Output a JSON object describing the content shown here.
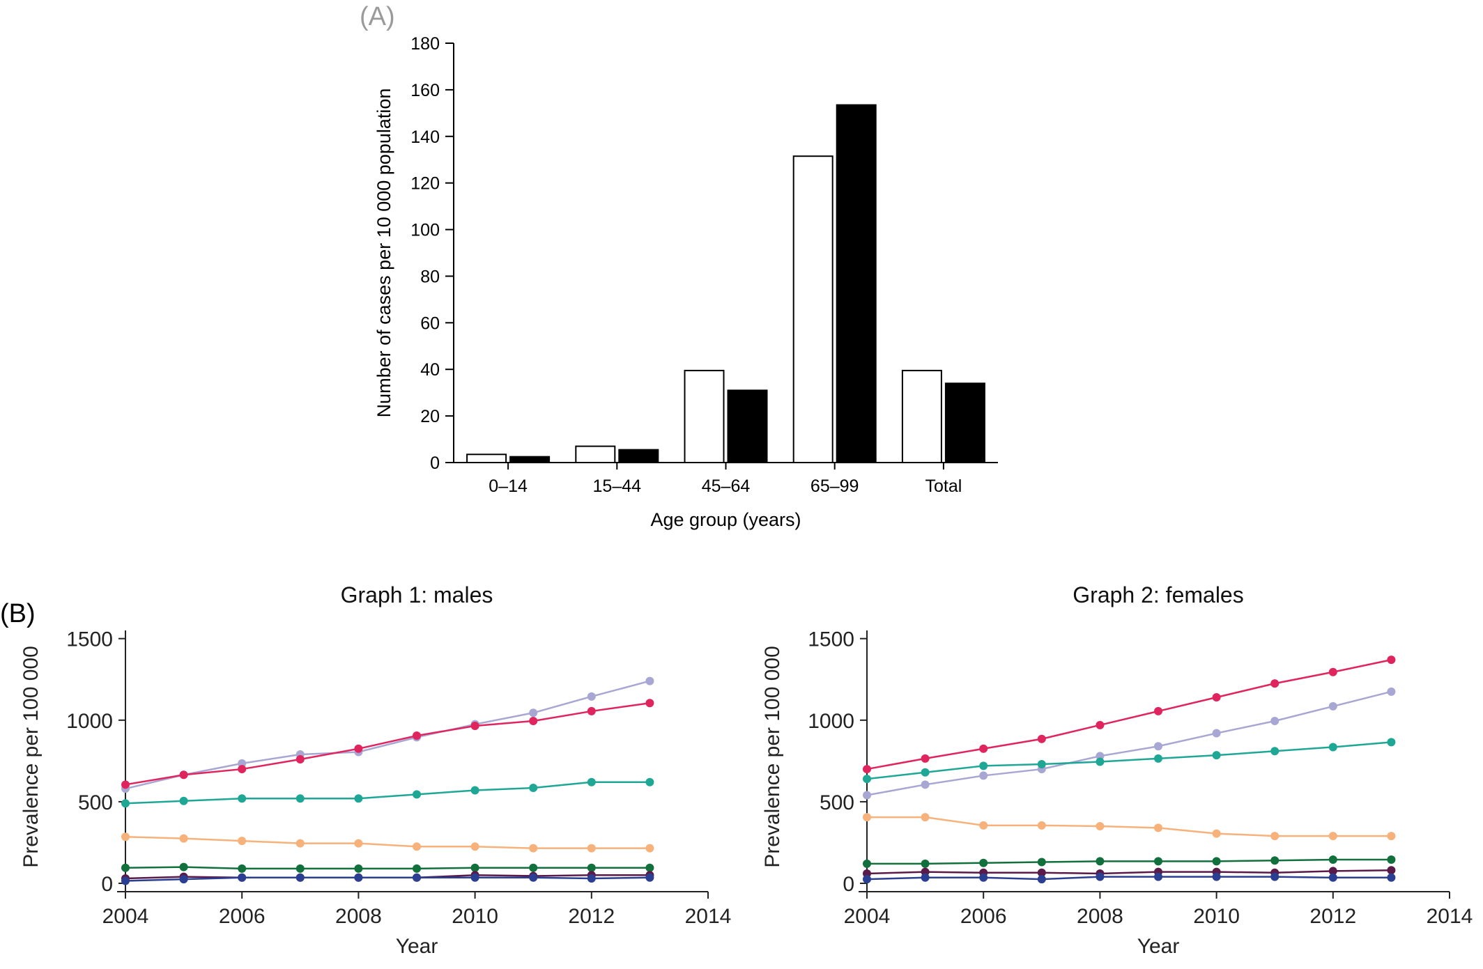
{
  "chart_data": [
    {
      "panel_label": "(A)",
      "type": "bar",
      "xlabel": "Age group (years)",
      "ylabel": "Number of cases per 10 000 population",
      "categories": [
        "0–14",
        "15–44",
        "45–64",
        "65–99",
        "Total"
      ],
      "ylim": [
        0,
        180
      ],
      "yticks": [
        0,
        20,
        40,
        60,
        80,
        100,
        120,
        140,
        160,
        180
      ],
      "series": [
        {
          "fill": "#ffffff",
          "values": [
            3.5,
            7,
            39.5,
            131.5,
            39.5
          ]
        },
        {
          "fill": "#000000",
          "values": [
            2.5,
            5.5,
            31,
            153.5,
            34
          ]
        }
      ]
    },
    {
      "panel_label": "(B)",
      "type": "line",
      "title": "Graph 1: males",
      "xlabel": "Year",
      "ylabel": "Prevalence per 100 000",
      "x": [
        2004,
        2005,
        2006,
        2007,
        2008,
        2009,
        2010,
        2011,
        2012,
        2013
      ],
      "xlim": [
        2004,
        2014
      ],
      "xticks": [
        2004,
        2006,
        2008,
        2010,
        2012,
        2014
      ],
      "ylim": [
        0,
        1550
      ],
      "yticks": [
        0,
        500,
        1000,
        1500
      ],
      "series": [
        {
          "color": "#a8a6d2",
          "values": [
            580,
            665,
            735,
            790,
            805,
            895,
            975,
            1045,
            1145,
            1240
          ]
        },
        {
          "color": "#e0245e",
          "values": [
            605,
            665,
            700,
            760,
            825,
            905,
            965,
            995,
            1055,
            1105
          ]
        },
        {
          "color": "#1fa796",
          "values": [
            490,
            505,
            520,
            520,
            520,
            545,
            570,
            585,
            620,
            620
          ]
        },
        {
          "color": "#f7b27c",
          "values": [
            285,
            275,
            260,
            245,
            245,
            225,
            225,
            215,
            215,
            215
          ]
        },
        {
          "color": "#12703d",
          "values": [
            95,
            100,
            90,
            90,
            90,
            90,
            95,
            95,
            95,
            95
          ]
        },
        {
          "color": "#5a1a4a",
          "values": [
            30,
            40,
            35,
            35,
            35,
            35,
            50,
            45,
            50,
            50
          ]
        },
        {
          "color": "#2a3f91",
          "values": [
            15,
            25,
            35,
            35,
            35,
            35,
            35,
            35,
            30,
            35
          ]
        }
      ]
    },
    {
      "type": "line",
      "title": "Graph 2: females",
      "xlabel": "Year",
      "ylabel": "Prevalence per 100 000",
      "x": [
        2004,
        2005,
        2006,
        2007,
        2008,
        2009,
        2010,
        2011,
        2012,
        2013
      ],
      "xlim": [
        2004,
        2014
      ],
      "xticks": [
        2004,
        2006,
        2008,
        2010,
        2012,
        2014
      ],
      "ylim": [
        0,
        1550
      ],
      "yticks": [
        0,
        500,
        1000,
        1500
      ],
      "series": [
        {
          "color": "#e0245e",
          "values": [
            700,
            765,
            825,
            885,
            970,
            1055,
            1140,
            1225,
            1295,
            1370
          ]
        },
        {
          "color": "#a8a6d2",
          "values": [
            540,
            605,
            660,
            700,
            780,
            840,
            920,
            995,
            1085,
            1175
          ]
        },
        {
          "color": "#1fa796",
          "values": [
            640,
            680,
            720,
            730,
            745,
            765,
            785,
            810,
            835,
            865
          ]
        },
        {
          "color": "#f7b27c",
          "values": [
            405,
            405,
            355,
            355,
            350,
            340,
            305,
            290,
            290,
            290
          ]
        },
        {
          "color": "#12703d",
          "values": [
            120,
            120,
            125,
            130,
            135,
            135,
            135,
            140,
            145,
            145
          ]
        },
        {
          "color": "#5a1a4a",
          "values": [
            60,
            70,
            65,
            65,
            60,
            70,
            70,
            65,
            75,
            80
          ]
        },
        {
          "color": "#2a3f91",
          "values": [
            25,
            35,
            35,
            25,
            40,
            40,
            40,
            40,
            35,
            35
          ]
        }
      ]
    }
  ]
}
